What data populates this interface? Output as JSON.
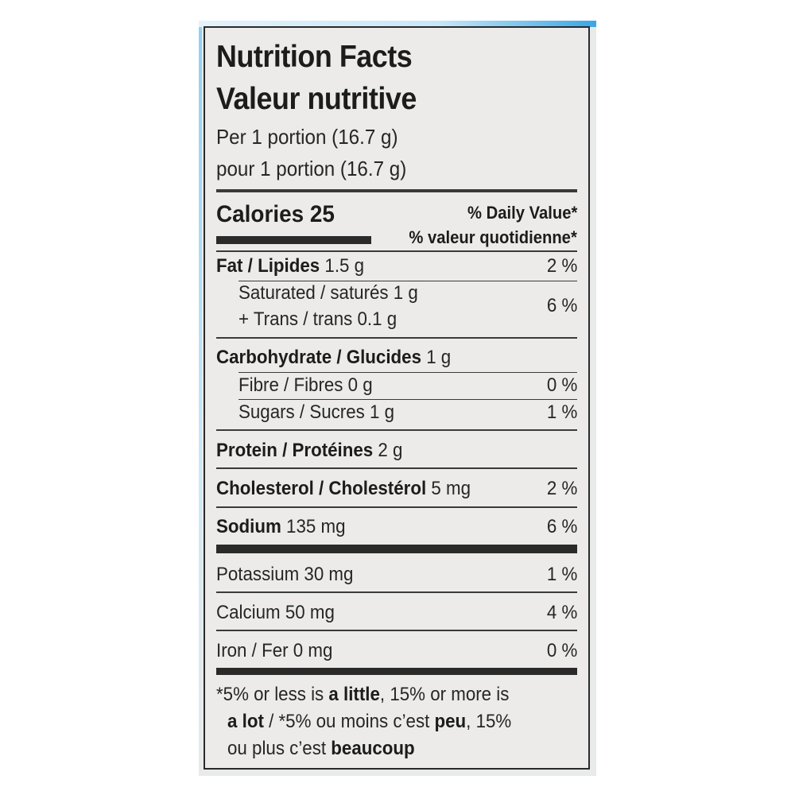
{
  "label": {
    "title_en": "Nutrition Facts",
    "title_fr": "Valeur nutritive",
    "serving_en": "Per 1 portion (16.7 g)",
    "serving_fr": "pour 1 portion (16.7 g)",
    "calories_label": "Calories",
    "calories_value": "25",
    "dv_header_en": "% Daily Value*",
    "dv_header_fr": "% valeur quotidienne*"
  },
  "nutrients": {
    "fat": {
      "name": "Fat / Lipides",
      "amount": "1.5 g",
      "dv": "2 %"
    },
    "saturated": {
      "name": "Saturated / saturés",
      "amount": "1 g"
    },
    "trans": {
      "name": "+ Trans / trans",
      "amount": "0.1 g"
    },
    "sat_trans_dv": "6 %",
    "carbohydrate": {
      "name": "Carbohydrate / Glucides",
      "amount": "1 g"
    },
    "fibre": {
      "name": "Fibre / Fibres",
      "amount": "0 g",
      "dv": "0 %"
    },
    "sugars": {
      "name": "Sugars / Sucres",
      "amount": "1 g",
      "dv": "1 %"
    },
    "protein": {
      "name": "Protein / Protéines",
      "amount": "2 g"
    },
    "cholesterol": {
      "name": "Cholesterol / Cholestérol",
      "amount": "5 mg",
      "dv": "2 %"
    },
    "sodium": {
      "name": "Sodium",
      "amount": "135 mg",
      "dv": "6 %"
    },
    "potassium": {
      "name": "Potassium",
      "amount": "30 mg",
      "dv": "1 %"
    },
    "calcium": {
      "name": "Calcium",
      "amount": "50 mg",
      "dv": "4 %"
    },
    "iron": {
      "name": "Iron / Fer",
      "amount": "0 mg",
      "dv": "0 %"
    }
  },
  "footnote": {
    "line1_a": "*5% or less is ",
    "line1_b": "a little",
    "line1_c": ", 15% or more is",
    "line2_a": "a lot",
    "line2_b": " / *5% ou moins c’est ",
    "line2_c": "peu",
    "line2_d": ", 15%",
    "line3_a": "ou plus c’est ",
    "line3_b": "beaucoup"
  },
  "colors": {
    "ink": "#1f1f1f",
    "panel_bg": "#ecebea",
    "accent_blue": "#3aa6e6"
  }
}
